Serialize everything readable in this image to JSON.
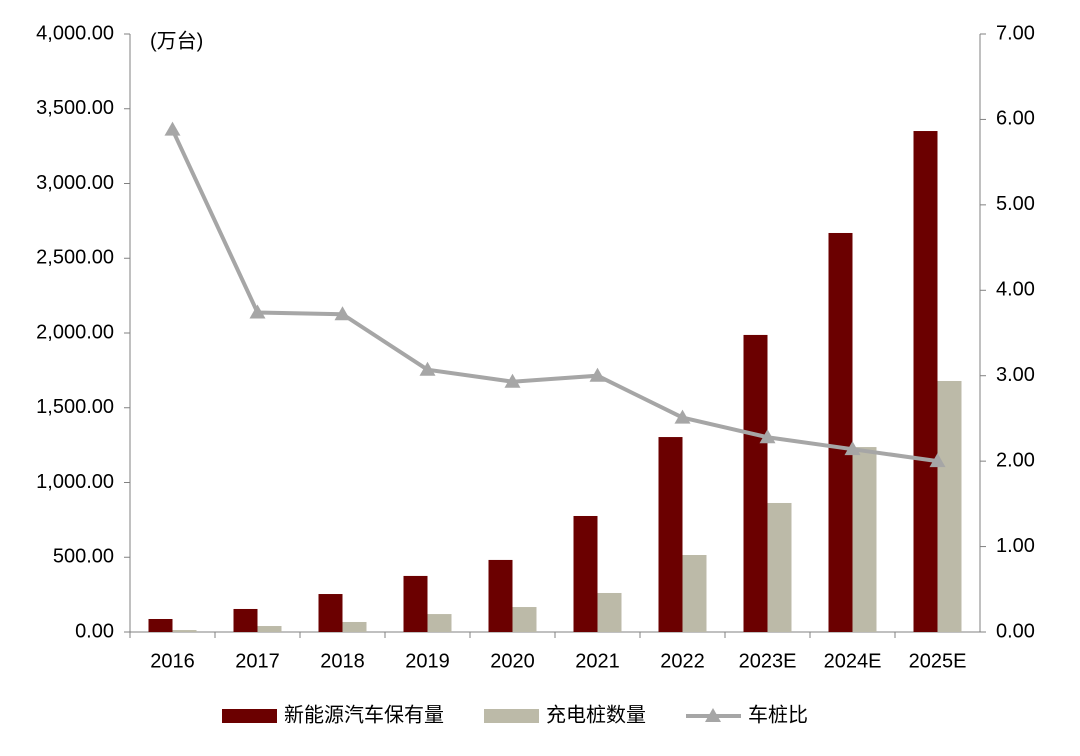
{
  "chart_data": {
    "type": "bar-line",
    "unit_label": "(万台)",
    "categories": [
      "2016",
      "2017",
      "2018",
      "2019",
      "2020",
      "2021",
      "2022",
      "2023E",
      "2024E",
      "2025E"
    ],
    "series": [
      {
        "name": "新能源汽车保有量",
        "type": "bar",
        "color": "#6b0000",
        "values": [
          87,
          154,
          254,
          375,
          482,
          776,
          1304,
          1987,
          2669,
          3351
        ]
      },
      {
        "name": "充电桩数量",
        "type": "bar",
        "color": "#bcbaa8",
        "values": [
          13,
          40,
          67,
          120,
          167,
          261,
          515,
          863,
          1237,
          1679
        ]
      },
      {
        "name": "车桩比",
        "type": "line",
        "axis": "y2",
        "color": "#a6a6a6",
        "values": [
          5.88,
          3.74,
          3.72,
          3.07,
          2.93,
          3.0,
          2.51,
          2.28,
          2.14,
          2.0
        ]
      }
    ],
    "ylim": [
      0,
      4000
    ],
    "yticks": [
      {
        "value": 0,
        "label": "0.00"
      },
      {
        "value": 500,
        "label": "500.00"
      },
      {
        "value": 1000,
        "label": "1,000.00"
      },
      {
        "value": 1500,
        "label": "1,500.00"
      },
      {
        "value": 2000,
        "label": "2,000.00"
      },
      {
        "value": 2500,
        "label": "2,500.00"
      },
      {
        "value": 3000,
        "label": "3,000.00"
      },
      {
        "value": 3500,
        "label": "3,500.00"
      },
      {
        "value": 4000,
        "label": "4,000.00"
      }
    ],
    "y2lim": [
      0,
      7
    ],
    "y2ticks": [
      {
        "value": 0,
        "label": "0.00"
      },
      {
        "value": 1,
        "label": "1.00"
      },
      {
        "value": 2,
        "label": "2.00"
      },
      {
        "value": 3,
        "label": "3.00"
      },
      {
        "value": 4,
        "label": "4.00"
      },
      {
        "value": 5,
        "label": "5.00"
      },
      {
        "value": 6,
        "label": "6.00"
      },
      {
        "value": 7,
        "label": "7.00"
      }
    ],
    "grid": false
  }
}
